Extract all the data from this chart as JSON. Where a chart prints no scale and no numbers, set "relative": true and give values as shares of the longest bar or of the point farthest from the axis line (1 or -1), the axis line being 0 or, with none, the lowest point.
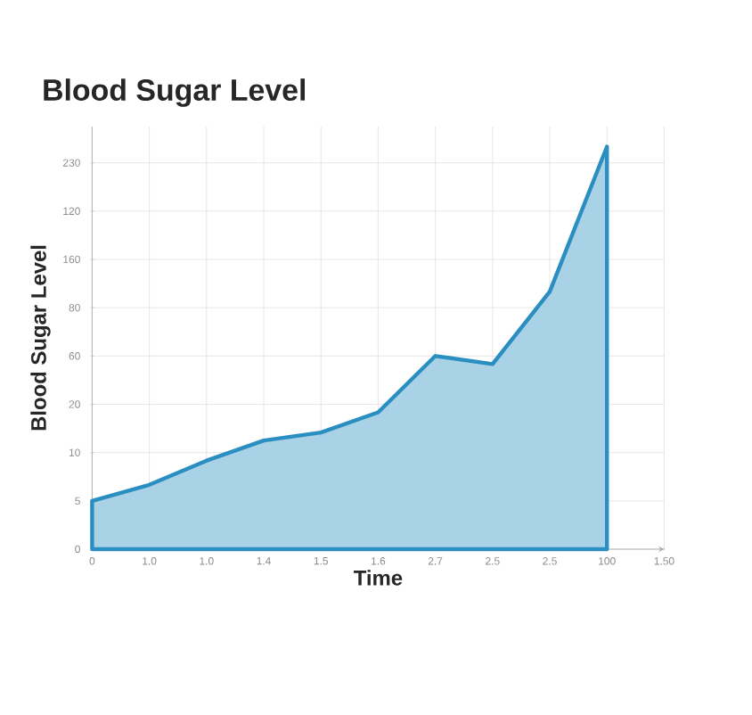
{
  "chart_data": {
    "type": "area",
    "title": "Blood Sugar Level",
    "xlabel": "Time",
    "ylabel": "Blood Sugar Level",
    "categories": [
      "0",
      "1.0",
      "1.0",
      "1.4",
      "1.5",
      "1.6",
      "2.7",
      "2.5",
      "2.5",
      "100",
      "1.50"
    ],
    "relative": true,
    "annotations": [
      "0",
      "5",
      "10",
      "20",
      "60",
      "80",
      "160",
      "120",
      "230"
    ],
    "grid": true,
    "series": [
      {
        "color": "#2a8fc0",
        "values": [
          0.12,
          0.16,
          0.22,
          0.27,
          0.29,
          0.34,
          0.48,
          0.46,
          0.64,
          1.0,
          null
        ]
      }
    ]
  }
}
